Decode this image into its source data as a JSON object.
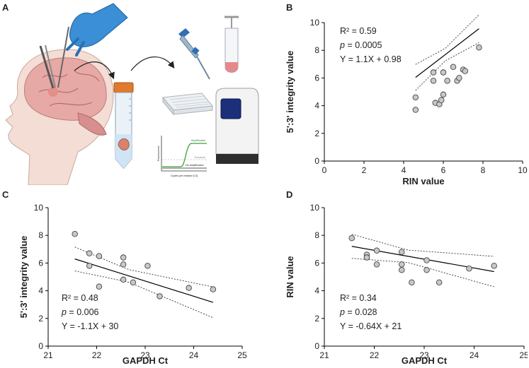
{
  "panels": {
    "a": "A",
    "b": "B",
    "c": "C",
    "d": "D"
  },
  "illustration": {
    "qpcr_labels": {
      "amplification": "Amplification",
      "threshold": "Threshold",
      "no_amplification": "No amplification",
      "ylabel": "Fluorescence",
      "xlabel": "Copies per reaction (Ct)"
    }
  },
  "colors": {
    "point_fill": "#c8c8c8",
    "point_stroke": "#444444",
    "line": "#000000",
    "glove": "#3a8fd6",
    "tube_cap": "#e07a2c",
    "brain": "#e7a9a6"
  },
  "chart_data": [
    {
      "id": "B",
      "type": "scatter",
      "xlabel": "RIN value",
      "ylabel": "5':3' integrity value",
      "xlim": [
        0,
        10
      ],
      "ylim": [
        0,
        10
      ],
      "xticks": [
        "0",
        "2",
        "4",
        "6",
        "8",
        "10"
      ],
      "yticks": [
        "0",
        "2",
        "4",
        "6",
        "8",
        "10"
      ],
      "points": [
        [
          4.6,
          4.6
        ],
        [
          4.6,
          3.7
        ],
        [
          5.5,
          6.4
        ],
        [
          5.5,
          5.8
        ],
        [
          5.6,
          4.2
        ],
        [
          5.8,
          4.1
        ],
        [
          5.9,
          4.4
        ],
        [
          6.0,
          4.8
        ],
        [
          6.0,
          6.4
        ],
        [
          6.2,
          5.8
        ],
        [
          6.5,
          6.8
        ],
        [
          6.7,
          5.8
        ],
        [
          6.8,
          6.0
        ],
        [
          7.0,
          6.6
        ],
        [
          7.1,
          6.5
        ],
        [
          7.8,
          8.2
        ]
      ],
      "fit": {
        "slope": 1.1,
        "intercept": 0.98,
        "x_range": [
          4.6,
          7.8
        ]
      },
      "annotations": {
        "r2": "R² = 0.59",
        "p_label": "p",
        "p_value": " = 0.0005",
        "equation": "Y = 1.1X + 0.98"
      }
    },
    {
      "id": "C",
      "type": "scatter",
      "xlabel": "GAPDH Ct",
      "ylabel": "5':3' integrity value",
      "xlim": [
        21,
        25
      ],
      "ylim": [
        0,
        10
      ],
      "xticks": [
        "21",
        "22",
        "23",
        "24",
        "25"
      ],
      "yticks": [
        "0",
        "2",
        "4",
        "6",
        "8",
        "10"
      ],
      "points": [
        [
          21.55,
          8.1
        ],
        [
          21.85,
          6.7
        ],
        [
          21.85,
          5.8
        ],
        [
          22.05,
          6.5
        ],
        [
          22.05,
          4.3
        ],
        [
          22.55,
          6.4
        ],
        [
          22.55,
          5.9
        ],
        [
          22.55,
          4.8
        ],
        [
          22.75,
          4.6
        ],
        [
          23.05,
          5.8
        ],
        [
          23.3,
          3.6
        ],
        [
          23.9,
          4.2
        ],
        [
          24.4,
          4.1
        ]
      ],
      "fit": {
        "slope": -1.1,
        "intercept": 30,
        "x_range": [
          21.55,
          24.4
        ]
      },
      "annotations": {
        "r2": "R² = 0.48",
        "p_label": "p",
        "p_value": " = 0.006",
        "equation": "Y = -1.1X + 30"
      }
    },
    {
      "id": "D",
      "type": "scatter",
      "xlabel": "GAPDH Ct",
      "ylabel": "RIN value",
      "xlim": [
        21,
        25
      ],
      "ylim": [
        0,
        10
      ],
      "xticks": [
        "21",
        "22",
        "23",
        "24",
        "25"
      ],
      "yticks": [
        "0",
        "2",
        "4",
        "6",
        "8",
        "10"
      ],
      "points": [
        [
          21.55,
          7.8
        ],
        [
          21.85,
          6.6
        ],
        [
          21.85,
          6.4
        ],
        [
          22.05,
          6.9
        ],
        [
          22.05,
          5.9
        ],
        [
          22.55,
          6.8
        ],
        [
          22.55,
          5.9
        ],
        [
          22.55,
          5.5
        ],
        [
          22.75,
          4.6
        ],
        [
          23.05,
          6.2
        ],
        [
          23.05,
          5.5
        ],
        [
          23.3,
          4.6
        ],
        [
          23.9,
          5.6
        ],
        [
          24.4,
          5.8
        ]
      ],
      "fit": {
        "slope": -0.64,
        "intercept": 21,
        "x_range": [
          21.55,
          24.4
        ]
      },
      "annotations": {
        "r2": "R² = 0.34",
        "p_label": "p",
        "p_value": " = 0.028",
        "equation": "Y = -0.64X + 21"
      }
    }
  ]
}
